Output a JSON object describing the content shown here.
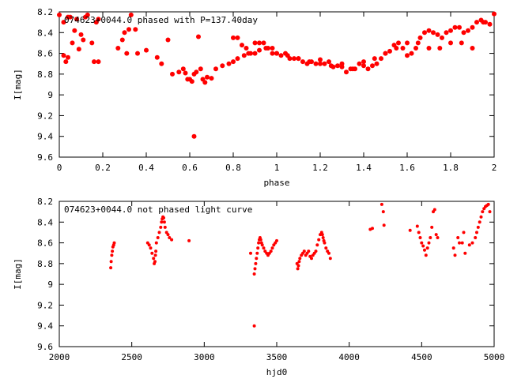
{
  "chart_data": [
    {
      "type": "scatter",
      "title": "074623+0044.0 phased with P=137.40day",
      "xlabel": "phase",
      "ylabel": "I[mag]",
      "xlim": [
        0,
        2
      ],
      "ylim": [
        9.6,
        8.2
      ],
      "y_inverted": true,
      "xticks": [
        "0",
        "0.2",
        "0.4",
        "0.6",
        "0.8",
        "1",
        "1.2",
        "1.4",
        "1.6",
        "1.8",
        "2"
      ],
      "yticks": [
        "8.2",
        "8.4",
        "8.6",
        "8.8",
        "9",
        "9.2",
        "9.4",
        "9.6"
      ],
      "marker_color": "#ff0000",
      "grid": false,
      "series": [
        {
          "x": [
            0.0,
            0.02,
            0.04,
            0.05,
            0.07,
            0.08,
            0.1,
            0.12,
            0.13,
            0.15,
            0.17,
            0.18,
            0.03,
            0.06,
            0.09,
            0.11,
            0.02,
            0.04,
            0.16,
            0.18,
            0.29,
            0.31,
            0.33,
            0.27,
            0.3,
            0.32,
            0.35,
            0.36,
            0.4,
            0.45,
            0.47,
            0.5,
            0.52,
            0.55,
            0.57,
            0.58,
            0.59,
            0.6,
            0.61,
            0.62,
            0.63,
            0.64,
            0.65,
            0.66,
            0.67,
            0.68,
            0.7,
            0.72,
            0.75,
            0.78,
            0.8,
            0.82,
            0.85,
            0.87,
            0.9,
            0.92,
            0.95,
            0.98,
            1.0,
            1.05,
            1.1,
            1.15,
            1.2,
            1.25,
            1.3,
            1.35,
            1.4,
            1.45,
            1.5,
            1.55,
            1.6,
            1.65,
            1.7,
            1.75,
            1.8,
            1.85,
            1.9,
            1.95,
            2.0,
            0.62,
            0.8,
            0.82,
            0.84,
            0.86,
            0.88,
            0.9,
            0.92,
            0.94,
            0.96,
            0.98,
            1.0,
            1.02,
            1.04,
            1.06,
            1.08,
            1.1,
            1.12,
            1.14,
            1.16,
            1.18,
            1.2,
            1.22,
            1.24,
            1.26,
            1.28,
            1.3,
            1.32,
            1.34,
            1.36,
            1.38,
            1.4,
            1.42,
            1.44,
            1.46,
            1.48,
            1.5,
            1.52,
            1.54,
            1.56,
            1.58,
            1.6,
            1.62,
            1.64,
            1.66,
            1.68,
            1.7,
            1.72,
            1.74,
            1.76,
            1.78,
            1.8,
            1.82,
            1.84,
            1.86,
            1.88,
            1.9,
            1.92,
            1.94,
            1.96,
            1.98
          ],
          "y": [
            8.23,
            8.3,
            8.25,
            8.25,
            8.38,
            8.27,
            8.42,
            8.25,
            8.23,
            8.5,
            8.3,
            8.27,
            8.68,
            8.5,
            8.56,
            8.47,
            8.62,
            8.64,
            8.68,
            8.68,
            8.47,
            8.6,
            8.23,
            8.55,
            8.4,
            8.37,
            8.37,
            8.6,
            8.57,
            8.64,
            8.7,
            8.47,
            8.8,
            8.78,
            8.75,
            8.79,
            8.85,
            8.85,
            8.87,
            8.8,
            8.78,
            8.44,
            8.75,
            8.85,
            8.88,
            8.83,
            8.84,
            8.75,
            8.72,
            8.7,
            8.68,
            8.65,
            8.62,
            8.6,
            8.6,
            8.57,
            8.55,
            8.55,
            8.6,
            8.62,
            8.65,
            8.68,
            8.7,
            8.72,
            8.73,
            8.75,
            8.72,
            8.65,
            8.6,
            8.55,
            8.5,
            8.5,
            8.55,
            8.55,
            8.5,
            8.5,
            8.55,
            8.3,
            8.22,
            9.4,
            8.45,
            8.45,
            8.52,
            8.55,
            8.6,
            8.5,
            8.5,
            8.5,
            8.55,
            8.6,
            8.6,
            8.62,
            8.6,
            8.65,
            8.65,
            8.65,
            8.68,
            8.7,
            8.68,
            8.7,
            8.66,
            8.7,
            8.68,
            8.73,
            8.72,
            8.7,
            8.78,
            8.75,
            8.75,
            8.7,
            8.68,
            8.75,
            8.72,
            8.7,
            8.65,
            8.6,
            8.58,
            8.52,
            8.5,
            8.55,
            8.62,
            8.6,
            8.55,
            8.45,
            8.4,
            8.38,
            8.4,
            8.42,
            8.45,
            8.4,
            8.38,
            8.35,
            8.35,
            8.4,
            8.38,
            8.35,
            8.3,
            8.28,
            8.3,
            8.32
          ]
        }
      ]
    },
    {
      "type": "scatter",
      "title": "074623+0044.0 not phased light curve",
      "xlabel": "hjd0",
      "ylabel": "I[mag]",
      "xlim": [
        2000,
        5000
      ],
      "ylim": [
        9.6,
        8.2
      ],
      "y_inverted": true,
      "xticks": [
        "2000",
        "2500",
        "3000",
        "3500",
        "4000",
        "4500",
        "5000"
      ],
      "yticks": [
        "8.2",
        "8.4",
        "8.6",
        "8.8",
        "9",
        "9.2",
        "9.4",
        "9.6"
      ],
      "marker_color": "#ff0000",
      "grid": false,
      "series": [
        {
          "x": [
            2355,
            2358,
            2362,
            2366,
            2370,
            2375,
            2379,
            2610,
            2620,
            2630,
            2640,
            2650,
            2655,
            2660,
            2663,
            2666,
            2670,
            2680,
            2690,
            2700,
            2705,
            2710,
            2715,
            2720,
            2725,
            2730,
            2740,
            2750,
            2760,
            2775,
            2895,
            3320,
            3345,
            3350,
            3355,
            3360,
            3365,
            3370,
            3375,
            3380,
            3385,
            3390,
            3395,
            3400,
            3410,
            3420,
            3430,
            3440,
            3450,
            3460,
            3470,
            3480,
            3490,
            3500,
            3345,
            3640,
            3645,
            3650,
            3655,
            3660,
            3670,
            3680,
            3690,
            3700,
            3710,
            3720,
            3730,
            3740,
            3750,
            3760,
            3770,
            3780,
            3790,
            3800,
            3810,
            3815,
            3820,
            3825,
            3830,
            3840,
            3850,
            3860,
            3870,
            4145,
            4160,
            4225,
            4235,
            4240,
            4420,
            4470,
            4480,
            4490,
            4500,
            4510,
            4520,
            4530,
            4540,
            4550,
            4560,
            4570,
            4580,
            4590,
            4600,
            4610,
            4720,
            4730,
            4750,
            4760,
            4780,
            4790,
            4800,
            4830,
            4850,
            4870,
            4880,
            4890,
            4900,
            4910,
            4920,
            4930,
            4940,
            4950,
            4960,
            4970
          ],
          "y": [
            8.84,
            8.78,
            8.72,
            8.68,
            8.64,
            8.62,
            8.6,
            8.6,
            8.62,
            8.65,
            8.7,
            8.75,
            8.8,
            8.78,
            8.72,
            8.68,
            8.6,
            8.55,
            8.5,
            8.45,
            8.4,
            8.37,
            8.35,
            8.36,
            8.4,
            8.45,
            8.5,
            8.52,
            8.55,
            8.57,
            8.58,
            8.7,
            8.9,
            8.85,
            8.8,
            8.75,
            8.7,
            8.65,
            8.6,
            8.57,
            8.55,
            8.57,
            8.6,
            8.62,
            8.65,
            8.68,
            8.7,
            8.72,
            8.7,
            8.68,
            8.65,
            8.62,
            8.6,
            8.58,
            9.4,
            8.8,
            8.85,
            8.82,
            8.78,
            8.75,
            8.72,
            8.7,
            8.68,
            8.72,
            8.7,
            8.68,
            8.73,
            8.75,
            8.72,
            8.7,
            8.68,
            8.62,
            8.57,
            8.52,
            8.5,
            8.52,
            8.55,
            8.58,
            8.6,
            8.65,
            8.68,
            8.7,
            8.75,
            8.47,
            8.46,
            8.23,
            8.3,
            8.43,
            8.48,
            8.44,
            8.5,
            8.55,
            8.6,
            8.63,
            8.67,
            8.72,
            8.65,
            8.6,
            8.55,
            8.45,
            8.3,
            8.28,
            8.52,
            8.55,
            8.65,
            8.72,
            8.55,
            8.6,
            8.6,
            8.5,
            8.7,
            8.62,
            8.6,
            8.55,
            8.5,
            8.45,
            8.4,
            8.35,
            8.3,
            8.27,
            8.25,
            8.24,
            8.23,
            8.3
          ]
        }
      ]
    }
  ]
}
